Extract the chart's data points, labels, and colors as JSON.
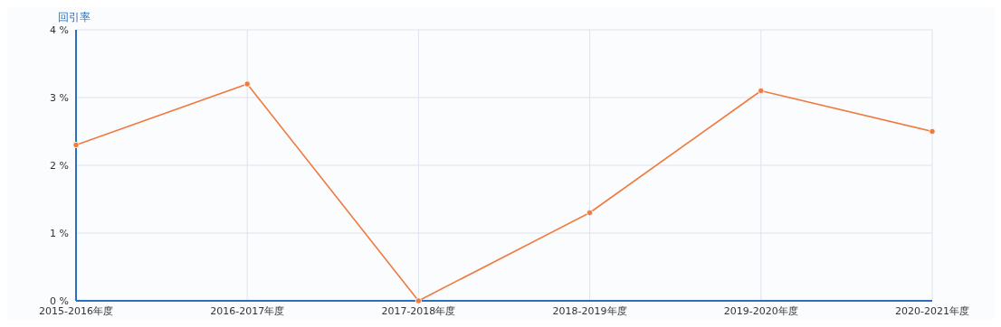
{
  "chart_data": {
    "type": "line",
    "ylabel": "回引率",
    "categories": [
      "2015-2016年度",
      "2016-2017年度",
      "2017-2018年度",
      "2018-2019年度",
      "2019-2020年度",
      "2020-2021年度"
    ],
    "series": [
      {
        "color": "#f07b3f",
        "values": [
          2.3,
          3.2,
          0,
          1.3,
          3.1,
          2.5
        ]
      }
    ],
    "ylim": [
      0,
      4
    ],
    "yticks": [
      {
        "value": 0,
        "label": "0 %"
      },
      {
        "value": 1,
        "label": "1 %"
      },
      {
        "value": 2,
        "label": "2 %"
      },
      {
        "value": 3,
        "label": "3 %"
      },
      {
        "value": 4,
        "label": "4 %"
      }
    ],
    "grid": true,
    "marker": "circle",
    "line_style": "solid"
  }
}
